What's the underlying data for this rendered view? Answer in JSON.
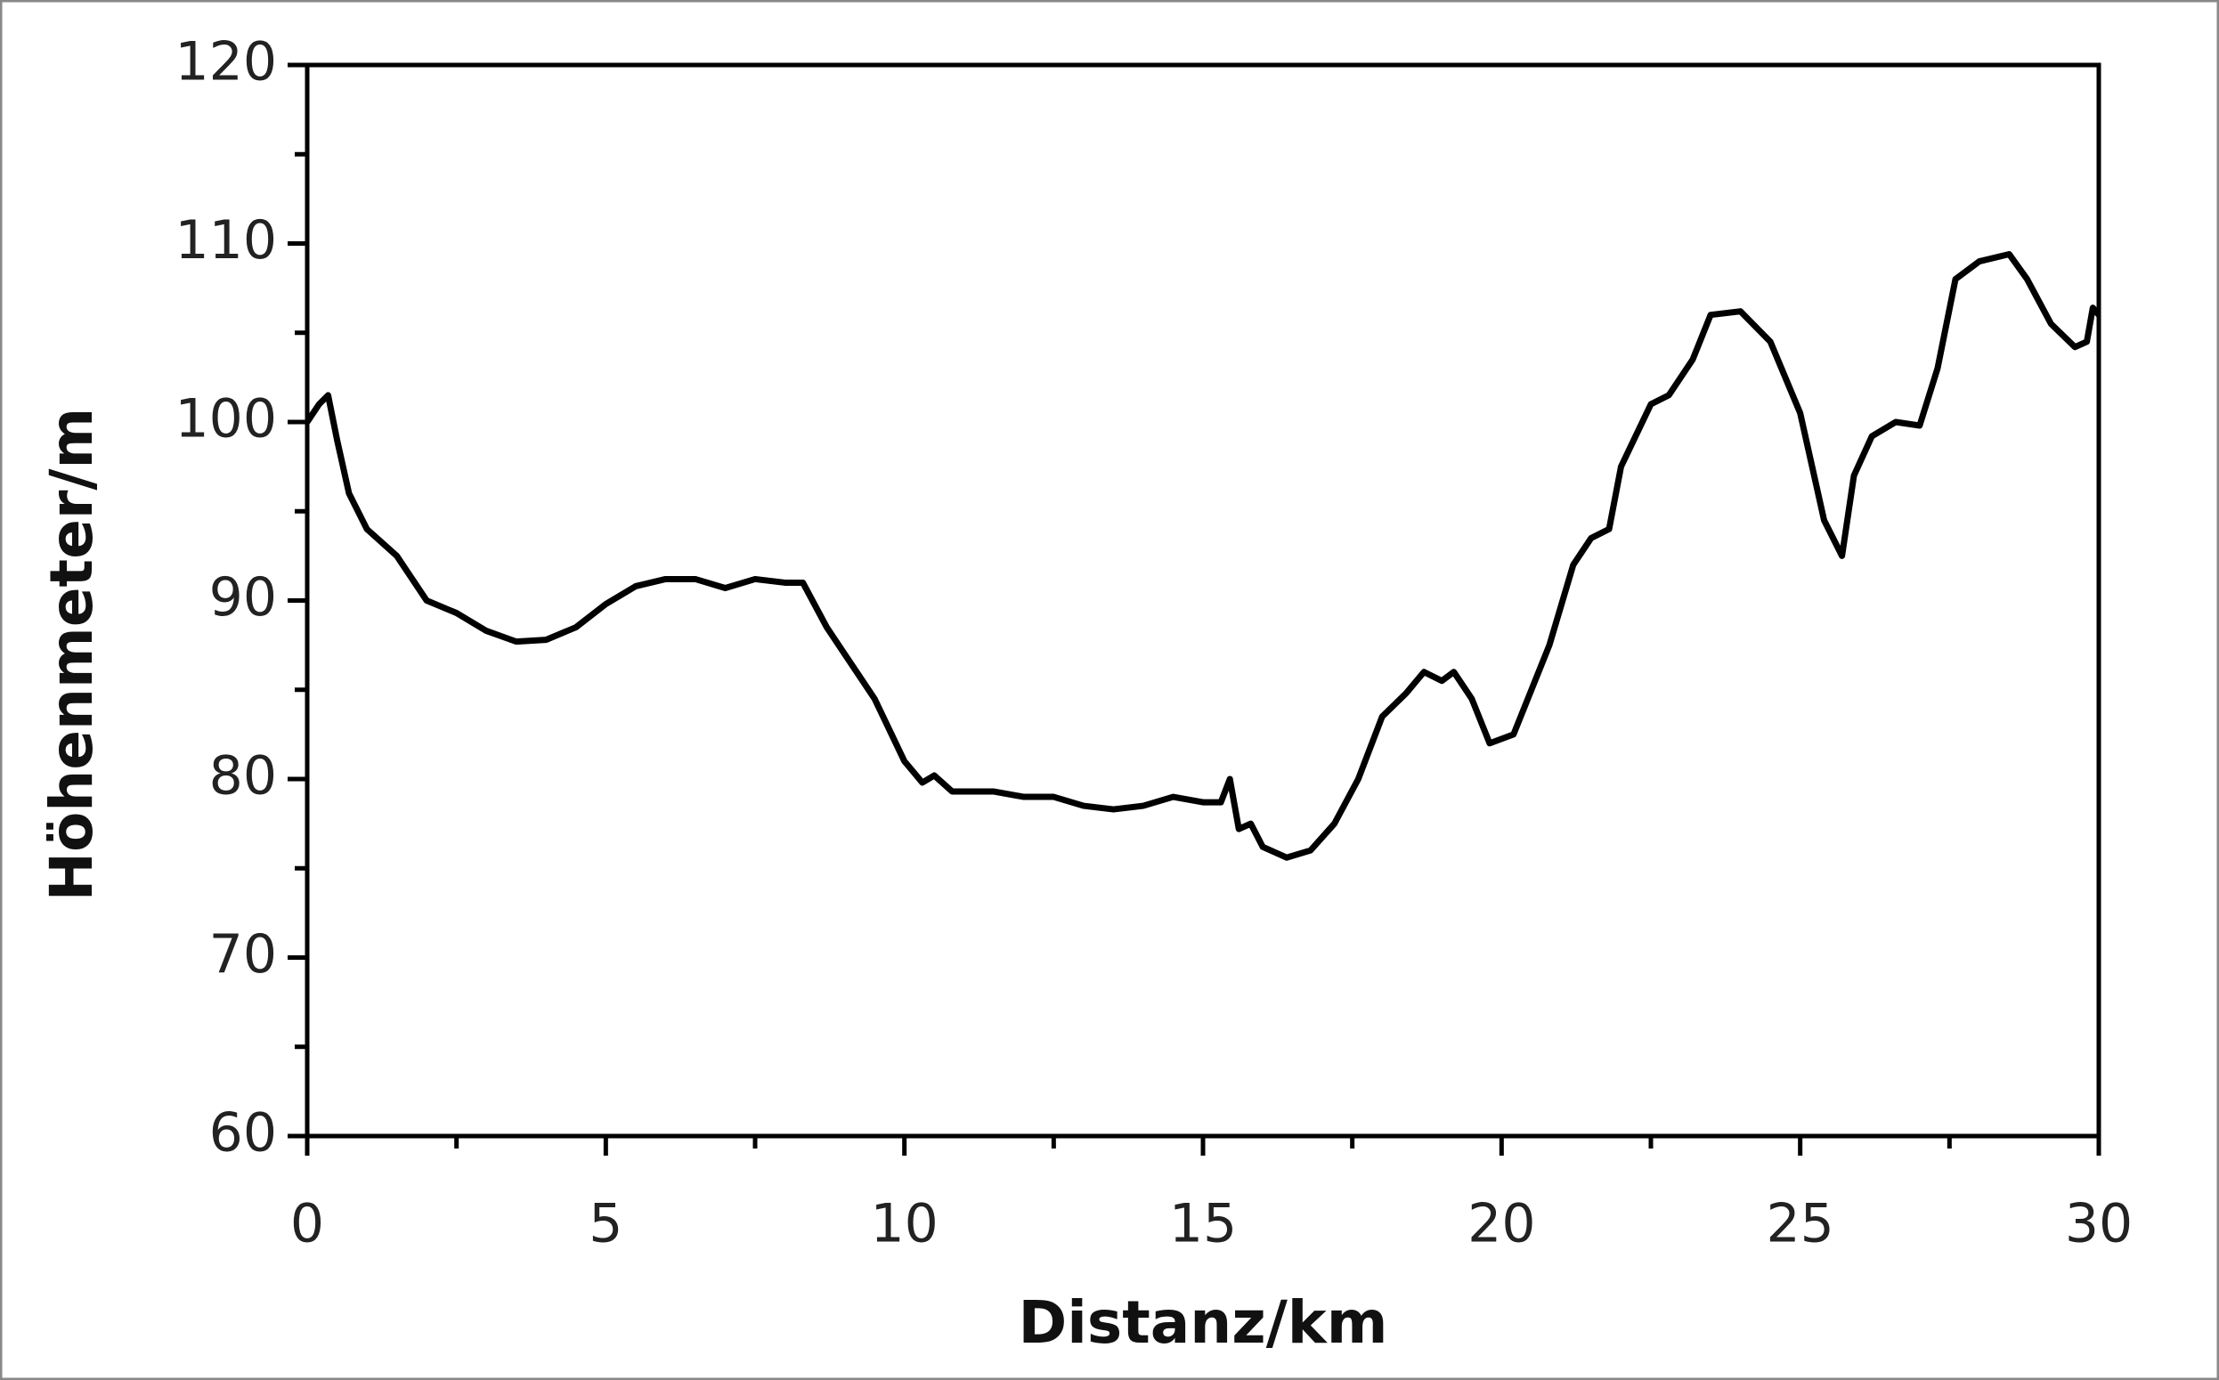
{
  "chart_data": {
    "type": "line",
    "x_label": "Distanz/km",
    "y_label": "Höhenmeter/m",
    "xlim": [
      0,
      30
    ],
    "ylim": [
      60,
      120
    ],
    "xticks": [
      0,
      5,
      10,
      15,
      20,
      25,
      30
    ],
    "yticks": [
      60,
      70,
      80,
      90,
      100,
      110,
      120
    ],
    "xminorticks": [
      2.5,
      7.5,
      12.5,
      17.5,
      22.5,
      27.5
    ],
    "yminorticks": [
      65,
      75,
      85,
      95,
      105,
      115
    ],
    "grid": false,
    "series": [
      {
        "color": "#000000",
        "x": [
          0,
          0.2,
          0.35,
          0.5,
          0.7,
          1.0,
          1.5,
          2.0,
          2.5,
          3.0,
          3.5,
          4.0,
          4.5,
          5.0,
          5.5,
          6.0,
          6.5,
          7.0,
          7.5,
          8.0,
          8.3,
          8.7,
          9.0,
          9.5,
          10.0,
          10.3,
          10.5,
          10.8,
          11.5,
          12,
          12.5,
          13,
          13.5,
          14,
          14.5,
          15,
          15.3,
          15.45,
          15.6,
          15.8,
          16.0,
          16.4,
          16.8,
          17.2,
          17.6,
          18.0,
          18.4,
          18.7,
          19.0,
          19.2,
          19.5,
          19.8,
          20.2,
          20.5,
          20.8,
          21.2,
          21.5,
          21.8,
          22.0,
          22.5,
          22.8,
          23.2,
          23.5,
          24.0,
          24.5,
          25.0,
          25.4,
          25.7,
          25.9,
          26.2,
          26.6,
          27.0,
          27.3,
          27.6,
          28.0,
          28.5,
          28.8,
          29.2,
          29.6,
          29.8,
          29.9,
          30.0
        ],
        "values": [
          100,
          101,
          101.5,
          99,
          96,
          94,
          92.5,
          90,
          89.3,
          88.3,
          87.7,
          87.8,
          88.5,
          89.8,
          90.8,
          91.2,
          91.2,
          90.7,
          91.2,
          91,
          91,
          88.5,
          87,
          84.5,
          81,
          79.8,
          80.2,
          79.3,
          79.3,
          79,
          79,
          78.5,
          78.3,
          78.5,
          79,
          78.7,
          78.7,
          80,
          77.2,
          77.5,
          76.2,
          75.6,
          76,
          77.5,
          80,
          83.5,
          84.8,
          86,
          85.5,
          86,
          84.5,
          82,
          82.5,
          85,
          87.5,
          92,
          93.5,
          94,
          97.5,
          101,
          101.5,
          103.5,
          106,
          106.2,
          104.5,
          100.5,
          94.5,
          92.5,
          97,
          99.2,
          100,
          99.8,
          103,
          108,
          109,
          109.4,
          108,
          105.5,
          104.2,
          104.5,
          106.4,
          106
        ]
      }
    ]
  }
}
